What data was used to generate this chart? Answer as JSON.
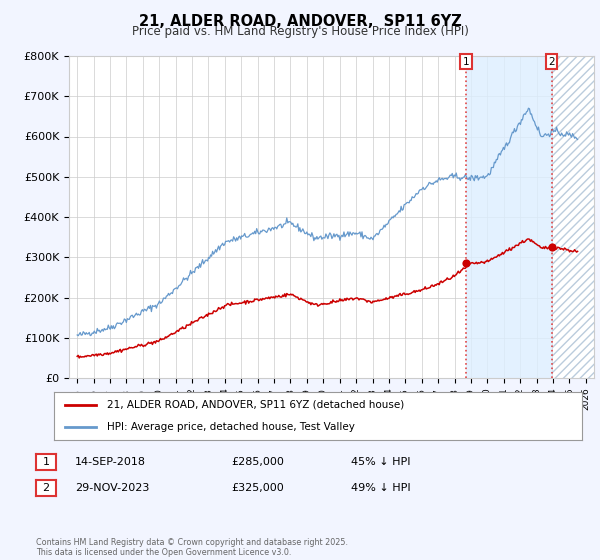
{
  "title": "21, ALDER ROAD, ANDOVER,  SP11 6YZ",
  "subtitle": "Price paid vs. HM Land Registry's House Price Index (HPI)",
  "ylim": [
    0,
    800000
  ],
  "xlim": [
    1994.5,
    2026.5
  ],
  "yticks": [
    0,
    100000,
    200000,
    300000,
    400000,
    500000,
    600000,
    700000,
    800000
  ],
  "ytick_labels": [
    "£0",
    "£100K",
    "£200K",
    "£300K",
    "£400K",
    "£500K",
    "£600K",
    "£700K",
    "£800K"
  ],
  "xticks": [
    1995,
    1996,
    1997,
    1998,
    1999,
    2000,
    2001,
    2002,
    2003,
    2004,
    2005,
    2006,
    2007,
    2008,
    2009,
    2010,
    2011,
    2012,
    2013,
    2014,
    2015,
    2016,
    2017,
    2018,
    2019,
    2020,
    2021,
    2022,
    2023,
    2024,
    2025,
    2026
  ],
  "hpi_color": "#6699cc",
  "price_color": "#cc0000",
  "marker1_date": 2018.71,
  "marker1_price": 285000,
  "marker1_label": "14-SEP-2018",
  "marker2_date": 2023.91,
  "marker2_price": 325000,
  "marker2_label": "29-NOV-2023",
  "legend_label_price": "21, ALDER ROAD, ANDOVER, SP11 6YZ (detached house)",
  "legend_label_hpi": "HPI: Average price, detached house, Test Valley",
  "footer": "Contains HM Land Registry data © Crown copyright and database right 2025.\nThis data is licensed under the Open Government Licence v3.0.",
  "bg_color": "#f2f5ff",
  "plot_bg": "#ffffff",
  "shade1_color": "#ddeeff",
  "shade2_hatch_color": "#bbccdd",
  "vline_color": "#dd3333",
  "marker_dot_color": "#cc0000",
  "grid_color": "#cccccc",
  "spine_color": "#cccccc"
}
